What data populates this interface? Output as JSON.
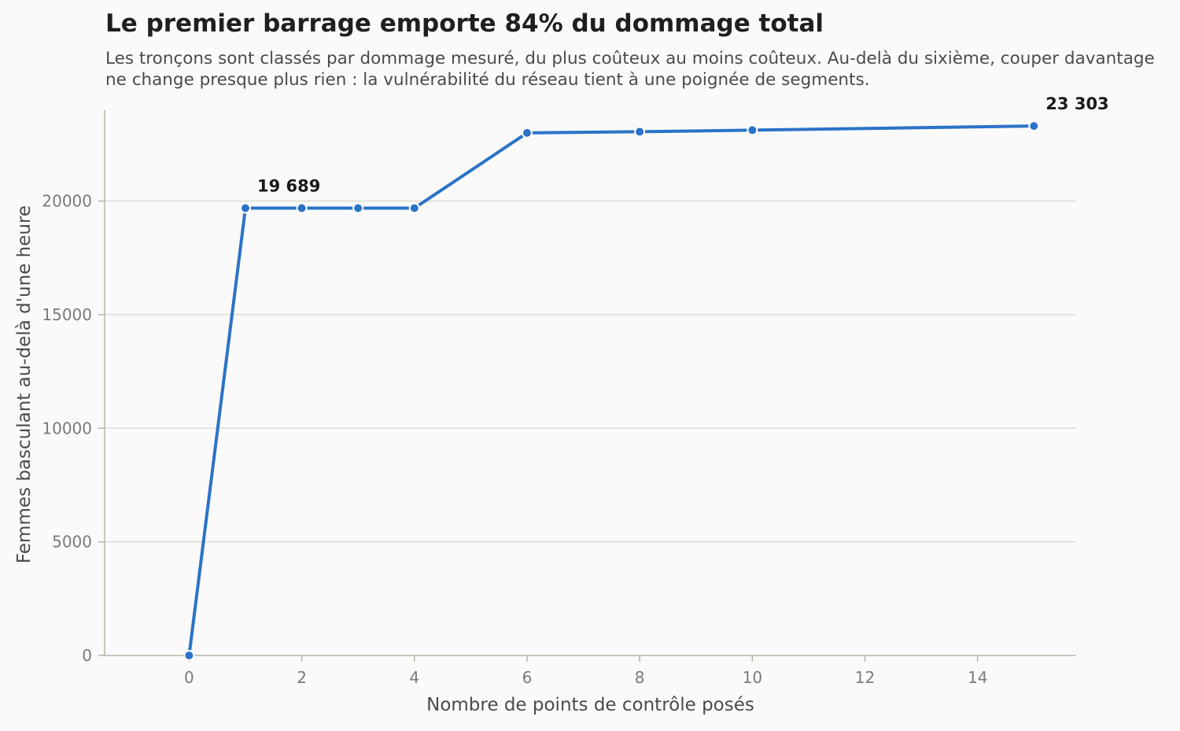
{
  "header": {
    "title": "Le premier barrage emporte 84% du dommage total",
    "subtitle": "Les tronçons sont classés par dommage mesuré, du plus coûteux au moins coûteux. Au-delà du sixième, couper davantage ne change presque plus rien : la vulnérabilité du réseau tient à une poignée de segments."
  },
  "chart_data": {
    "type": "line",
    "xlabel": "Nombre de points de contrôle posés",
    "ylabel": "Femmes basculant au-delà d'une heure",
    "xlim": [
      -1.5,
      15.75
    ],
    "ylim": [
      0,
      24000
    ],
    "x_ticks": [
      0,
      2,
      4,
      6,
      8,
      10,
      12,
      14
    ],
    "y_ticks": [
      0,
      5000,
      10000,
      15000,
      20000
    ],
    "grid": "horizontal",
    "line_color": "#2b73c8",
    "series": [
      {
        "x": [
          0,
          1,
          2,
          3,
          4,
          6,
          8,
          10,
          15
        ],
        "y": [
          0,
          19689,
          19689,
          19689,
          19689,
          23000,
          23050,
          23120,
          23303
        ]
      }
    ],
    "annotations": [
      {
        "x": 1,
        "y": 19689,
        "text": "19 689"
      },
      {
        "x": 15,
        "y": 23303,
        "text": "23 303"
      }
    ]
  }
}
